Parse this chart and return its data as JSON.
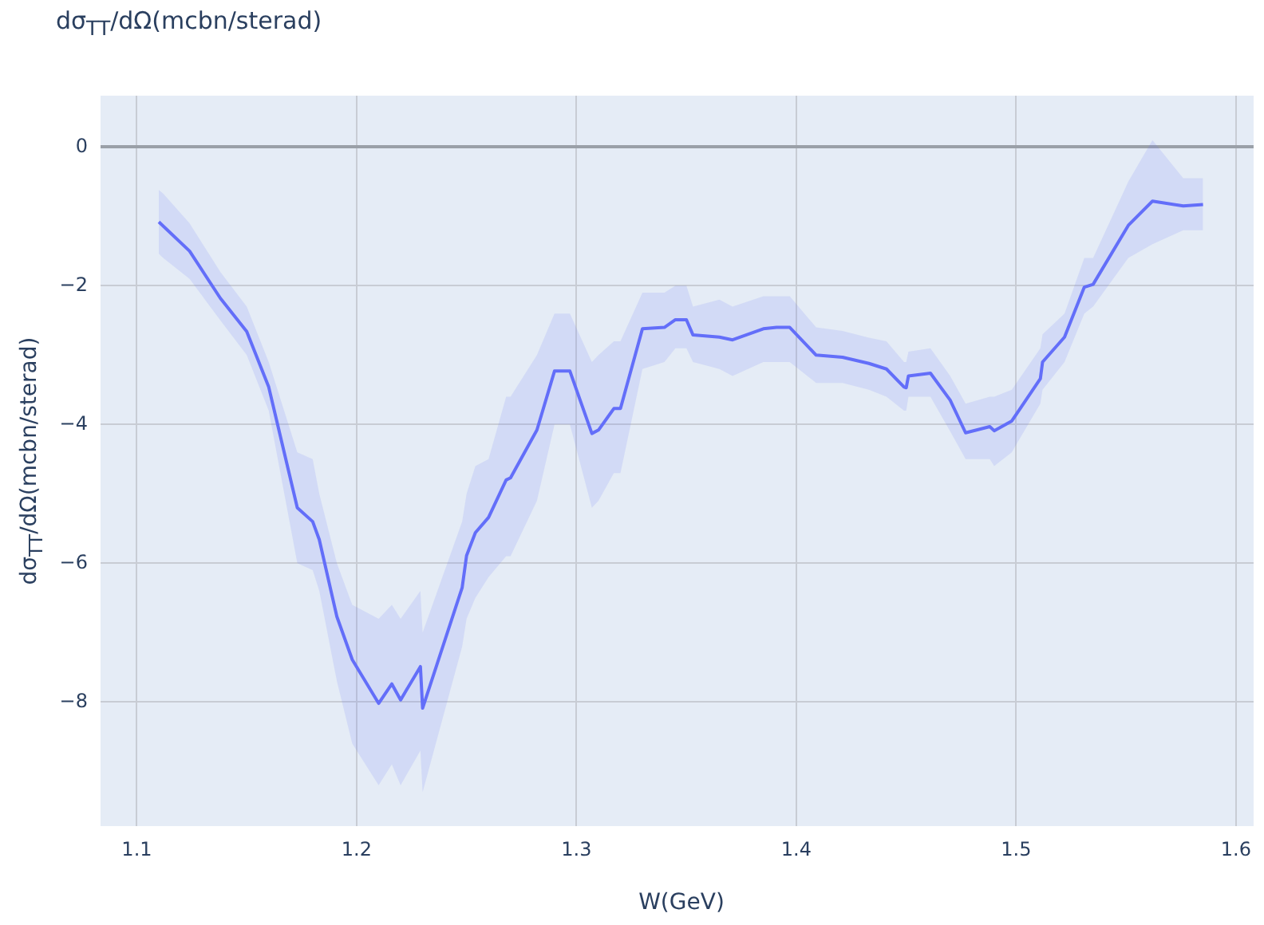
{
  "chart_data": {
    "type": "line",
    "title": "dσ$_{TT}$/dΩ(mcbn/sterad)",
    "xlabel": "W(GeV)",
    "ylabel": "dσ$_{TT}$/dΩ(mcbn/sterad)",
    "xlim": [
      1.0835,
      1.608
    ],
    "ylim": [
      -9.79,
      0.74
    ],
    "xticks": [
      1.1,
      1.2,
      1.3,
      1.4,
      1.5,
      1.6
    ],
    "yticks": [
      0,
      {
        "value": -2,
        "label": "−2"
      },
      {
        "value": -4,
        "label": "−4"
      },
      {
        "value": -6,
        "label": "−6"
      },
      {
        "value": -8,
        "label": "−8"
      }
    ],
    "grid": true,
    "legend": false,
    "series": [
      {
        "color": "#636efa",
        "x": [
          1.11,
          1.112,
          1.124,
          1.138,
          1.15,
          1.16,
          1.173,
          1.18,
          1.183,
          1.191,
          1.198,
          1.21,
          1.216,
          1.22,
          1.229,
          1.23,
          1.248,
          1.25,
          1.254,
          1.26,
          1.268,
          1.27,
          1.282,
          1.29,
          1.297,
          1.307,
          1.31,
          1.317,
          1.32,
          1.33,
          1.34,
          1.345,
          1.35,
          1.353,
          1.365,
          1.371,
          1.385,
          1.391,
          1.397,
          1.409,
          1.421,
          1.433,
          1.441,
          1.449,
          1.45,
          1.451,
          1.461,
          1.47,
          1.477,
          1.488,
          1.49,
          1.498,
          1.511,
          1.512,
          1.522,
          1.531,
          1.535,
          1.551,
          1.562,
          1.576,
          1.585
        ],
        "values": [
          -1.08,
          -1.14,
          -1.5,
          -2.18,
          -2.66,
          -3.46,
          -5.2,
          -5.4,
          -5.66,
          -6.77,
          -7.39,
          -8.02,
          -7.74,
          -7.97,
          -7.49,
          -8.09,
          -6.35,
          -5.89,
          -5.56,
          -5.34,
          -4.8,
          -4.77,
          -4.08,
          -3.23,
          -3.23,
          -4.13,
          -4.08,
          -3.77,
          -3.77,
          -2.62,
          -2.6,
          -2.49,
          -2.49,
          -2.71,
          -2.74,
          -2.78,
          -2.62,
          -2.6,
          -2.6,
          -3.0,
          -3.03,
          -3.12,
          -3.2,
          -3.46,
          -3.47,
          -3.3,
          -3.26,
          -3.65,
          -4.12,
          -4.03,
          -4.09,
          -3.95,
          -3.34,
          -3.1,
          -2.74,
          -2.02,
          -1.98,
          -1.13,
          -0.78,
          -0.85,
          -0.83
        ],
        "lower": [
          -1.54,
          -1.6,
          -1.9,
          -2.5,
          -3.0,
          -3.8,
          -6.0,
          -6.1,
          -6.4,
          -7.7,
          -8.6,
          -9.2,
          -8.9,
          -9.2,
          -8.7,
          -9.3,
          -7.2,
          -6.8,
          -6.5,
          -6.2,
          -5.9,
          -5.9,
          -5.1,
          -4.0,
          -4.0,
          -5.2,
          -5.1,
          -4.7,
          -4.7,
          -3.2,
          -3.1,
          -2.9,
          -2.9,
          -3.1,
          -3.2,
          -3.3,
          -3.1,
          -3.1,
          -3.1,
          -3.4,
          -3.4,
          -3.5,
          -3.6,
          -3.8,
          -3.8,
          -3.6,
          -3.6,
          -4.1,
          -4.5,
          -4.5,
          -4.6,
          -4.4,
          -3.7,
          -3.5,
          -3.1,
          -2.4,
          -2.3,
          -1.6,
          -1.4,
          -1.2,
          -1.2
        ],
        "upper": [
          -0.62,
          -0.67,
          -1.1,
          -1.8,
          -2.3,
          -3.1,
          -4.4,
          -4.5,
          -5.0,
          -6.0,
          -6.6,
          -6.8,
          -6.6,
          -6.8,
          -6.4,
          -7.0,
          -5.4,
          -5.0,
          -4.6,
          -4.5,
          -3.6,
          -3.6,
          -3.0,
          -2.4,
          -2.4,
          -3.1,
          -3.0,
          -2.8,
          -2.8,
          -2.1,
          -2.1,
          -2.0,
          -2.0,
          -2.3,
          -2.2,
          -2.3,
          -2.15,
          -2.15,
          -2.15,
          -2.6,
          -2.65,
          -2.75,
          -2.8,
          -3.1,
          -3.1,
          -2.95,
          -2.9,
          -3.3,
          -3.7,
          -3.6,
          -3.6,
          -3.5,
          -2.9,
          -2.7,
          -2.4,
          -1.6,
          -1.6,
          -0.5,
          0.1,
          -0.45,
          -0.45
        ]
      }
    ]
  }
}
